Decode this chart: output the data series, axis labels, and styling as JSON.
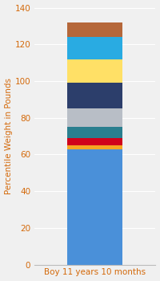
{
  "category": "Boy 11 years 10 months",
  "segments": [
    {
      "value": 63,
      "color": "#4A90D9"
    },
    {
      "value": 2,
      "color": "#F5A623"
    },
    {
      "value": 4,
      "color": "#D0021B"
    },
    {
      "value": 6,
      "color": "#2A7F8F"
    },
    {
      "value": 10,
      "color": "#B8BEC6"
    },
    {
      "value": 14,
      "color": "#2C3E6B"
    },
    {
      "value": 13,
      "color": "#FFE066"
    },
    {
      "value": 12,
      "color": "#29ABE2"
    },
    {
      "value": 8,
      "color": "#B5673A"
    }
  ],
  "ylabel": "Percentile Weight in Pounds",
  "ylim": [
    0,
    140
  ],
  "yticks": [
    0,
    20,
    40,
    60,
    80,
    100,
    120,
    140
  ],
  "background_color": "#F0F0F0",
  "bar_width": 0.55,
  "ylabel_color": "#D4690A",
  "xlabel_color": "#D4690A",
  "tick_color": "#D4690A",
  "ylabel_fontsize": 7.5,
  "tick_fontsize": 7.5
}
